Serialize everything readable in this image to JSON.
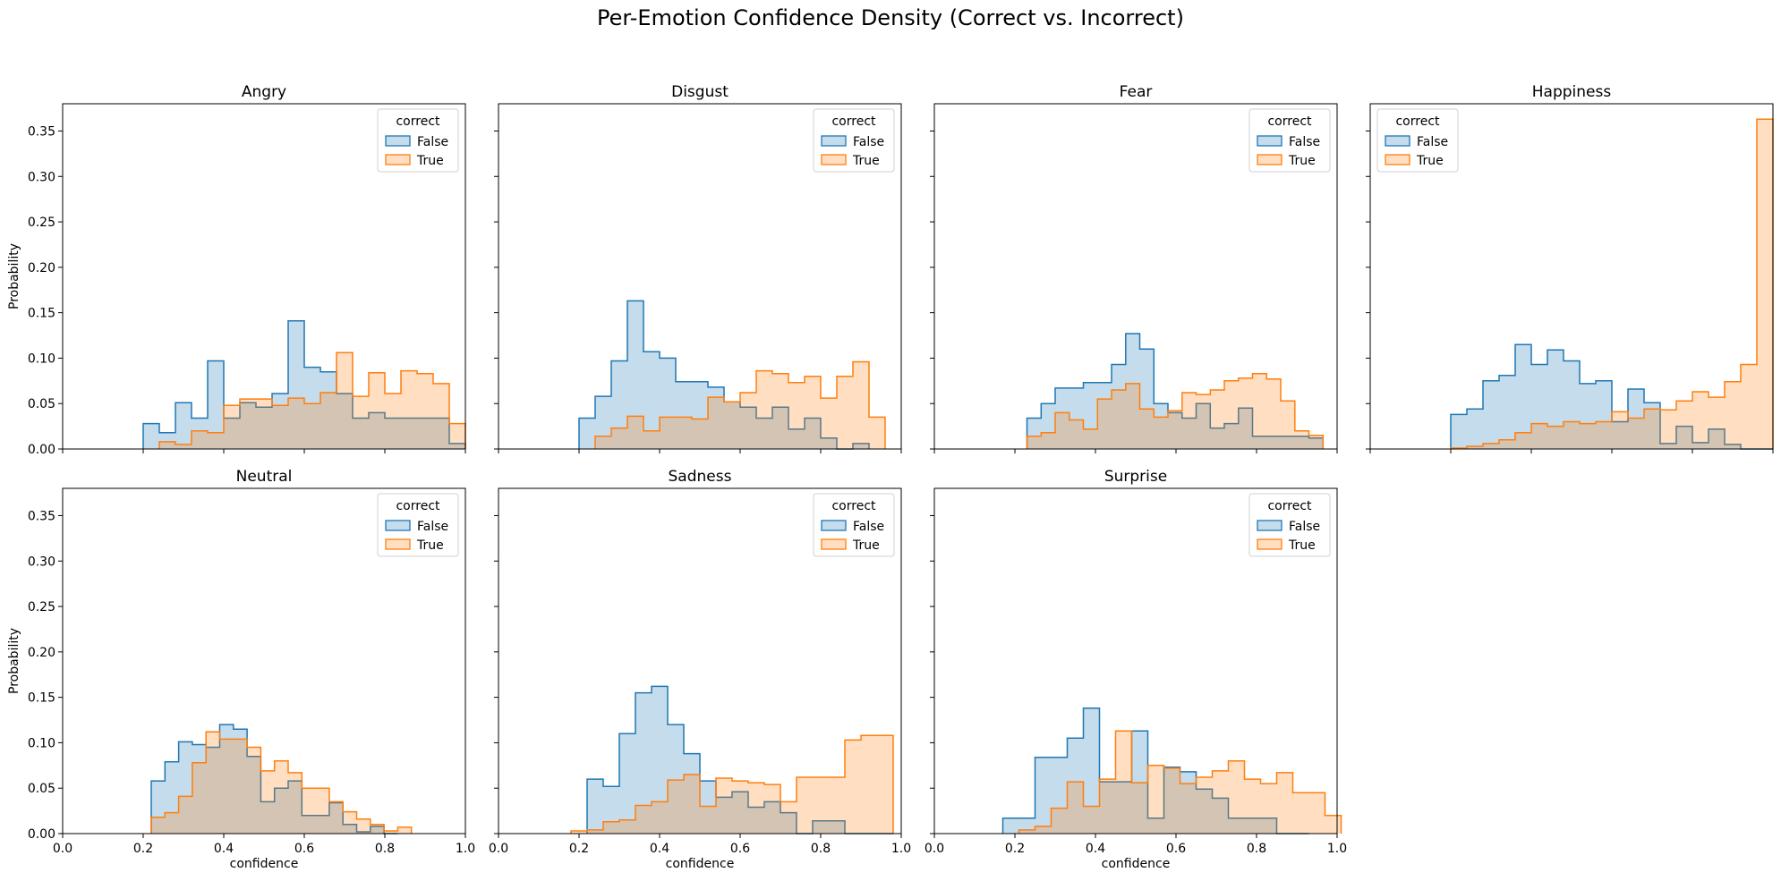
{
  "chart_data": {
    "type": "histogram",
    "title": "Per-Emotion Confidence Density (Correct vs. Incorrect)",
    "xlabel": "confidence",
    "ylabel": "Probability",
    "xlim": [
      0,
      1
    ],
    "ylim": [
      0,
      0.38
    ],
    "x_ticks": [
      "0.0",
      "0.2",
      "0.4",
      "0.6",
      "0.8",
      "1.0"
    ],
    "y_ticks": [
      "0.00",
      "0.05",
      "0.10",
      "0.15",
      "0.20",
      "0.25",
      "0.30",
      "0.35"
    ],
    "grid": false,
    "legend": {
      "title": "correct",
      "placement": "upper-right",
      "entries": [
        {
          "label": "False",
          "color": "#1f77b4"
        },
        {
          "label": "True",
          "color": "#ff7f0e"
        }
      ]
    },
    "panels": [
      {
        "title": "Angry",
        "legend_placement": "upper-right",
        "series": [
          {
            "name": "False",
            "start": 0.2,
            "width": 0.04,
            "values": [
              0.028,
              0.018,
              0.051,
              0.034,
              0.097,
              0.034,
              0.051,
              0.046,
              0.061,
              0.141,
              0.09,
              0.085,
              0.061,
              0.034,
              0.04,
              0.034,
              0.034,
              0.034,
              0.034,
              0.006
            ]
          },
          {
            "name": "True",
            "start": 0.24,
            "width": 0.04,
            "values": [
              0.008,
              0.005,
              0.02,
              0.018,
              0.048,
              0.055,
              0.055,
              0.048,
              0.056,
              0.05,
              0.062,
              0.106,
              0.058,
              0.084,
              0.061,
              0.086,
              0.083,
              0.072,
              0.028
            ]
          }
        ]
      },
      {
        "title": "Disgust",
        "legend_placement": "upper-right",
        "series": [
          {
            "name": "False",
            "start": 0.2,
            "width": 0.04,
            "values": [
              0.034,
              0.058,
              0.097,
              0.163,
              0.107,
              0.1,
              0.074,
              0.074,
              0.068,
              0.052,
              0.046,
              0.034,
              0.046,
              0.022,
              0.034,
              0.012,
              0.0,
              0.006
            ]
          },
          {
            "name": "True",
            "start": 0.24,
            "width": 0.04,
            "values": [
              0.014,
              0.023,
              0.036,
              0.02,
              0.035,
              0.035,
              0.033,
              0.057,
              0.052,
              0.062,
              0.086,
              0.083,
              0.073,
              0.08,
              0.056,
              0.08,
              0.096,
              0.035
            ]
          }
        ]
      },
      {
        "title": "Fear",
        "legend_placement": "upper-right",
        "series": [
          {
            "name": "False",
            "start": 0.23,
            "width": 0.035,
            "values": [
              0.034,
              0.05,
              0.067,
              0.067,
              0.073,
              0.073,
              0.093,
              0.127,
              0.11,
              0.05,
              0.04,
              0.034,
              0.05,
              0.023,
              0.028,
              0.045,
              0.014,
              0.014,
              0.014,
              0.014,
              0.012
            ]
          },
          {
            "name": "True",
            "start": 0.23,
            "width": 0.035,
            "values": [
              0.014,
              0.018,
              0.04,
              0.032,
              0.022,
              0.055,
              0.065,
              0.072,
              0.044,
              0.035,
              0.042,
              0.062,
              0.06,
              0.065,
              0.075,
              0.078,
              0.083,
              0.077,
              0.053,
              0.02,
              0.015
            ]
          }
        ]
      },
      {
        "title": "Happiness",
        "legend_placement": "upper-left",
        "series": [
          {
            "name": "False",
            "start": 0.2,
            "width": 0.04,
            "values": [
              0.038,
              0.044,
              0.075,
              0.081,
              0.115,
              0.093,
              0.109,
              0.097,
              0.072,
              0.075,
              0.03,
              0.066,
              0.051,
              0.006,
              0.025,
              0.007,
              0.022,
              0.005,
              0.0,
              0.0
            ]
          },
          {
            "name": "True",
            "start": 0.2,
            "width": 0.04,
            "values": [
              0.001,
              0.003,
              0.006,
              0.01,
              0.018,
              0.028,
              0.025,
              0.03,
              0.028,
              0.03,
              0.041,
              0.034,
              0.044,
              0.043,
              0.053,
              0.063,
              0.057,
              0.074,
              0.093,
              0.363
            ]
          }
        ]
      },
      {
        "title": "Neutral",
        "legend_placement": "upper-right",
        "series": [
          {
            "name": "False",
            "start": 0.22,
            "width": 0.034,
            "values": [
              0.058,
              0.079,
              0.101,
              0.098,
              0.095,
              0.12,
              0.115,
              0.085,
              0.035,
              0.05,
              0.058,
              0.02,
              0.02,
              0.034,
              0.01,
              0.002,
              0.008,
              0.0
            ]
          },
          {
            "name": "True",
            "start": 0.22,
            "width": 0.034,
            "values": [
              0.018,
              0.023,
              0.041,
              0.078,
              0.112,
              0.104,
              0.104,
              0.095,
              0.069,
              0.08,
              0.067,
              0.05,
              0.05,
              0.035,
              0.024,
              0.016,
              0.01,
              0.003,
              0.007
            ]
          }
        ]
      },
      {
        "title": "Sadness",
        "legend_placement": "upper-right",
        "series": [
          {
            "name": "False",
            "start": 0.22,
            "width": 0.04,
            "values": [
              0.06,
              0.052,
              0.11,
              0.155,
              0.162,
              0.12,
              0.088,
              0.058,
              0.04,
              0.046,
              0.029,
              0.035,
              0.023,
              0.0,
              0.014,
              0.014,
              0.0,
              0.0,
              0.0
            ]
          },
          {
            "name": "True",
            "start": 0.18,
            "width": 0.04,
            "values": [
              0.003,
              0.004,
              0.013,
              0.015,
              0.031,
              0.035,
              0.059,
              0.065,
              0.03,
              0.061,
              0.058,
              0.056,
              0.054,
              0.035,
              0.062,
              0.062,
              0.062,
              0.103,
              0.108,
              0.108
            ]
          }
        ]
      },
      {
        "title": "Surprise",
        "legend_placement": "upper-right",
        "series": [
          {
            "name": "False",
            "start": 0.17,
            "width": 0.04,
            "values": [
              0.017,
              0.017,
              0.084,
              0.084,
              0.105,
              0.138,
              0.057,
              0.057,
              0.113,
              0.017,
              0.073,
              0.068,
              0.049,
              0.039,
              0.017,
              0.017,
              0.017,
              0.0,
              0.0
            ]
          },
          {
            "name": "True",
            "start": 0.21,
            "width": 0.04,
            "values": [
              0.004,
              0.008,
              0.028,
              0.057,
              0.03,
              0.06,
              0.113,
              0.056,
              0.075,
              0.072,
              0.055,
              0.062,
              0.069,
              0.08,
              0.06,
              0.055,
              0.067,
              0.045,
              0.045,
              0.02
            ]
          }
        ]
      }
    ]
  }
}
